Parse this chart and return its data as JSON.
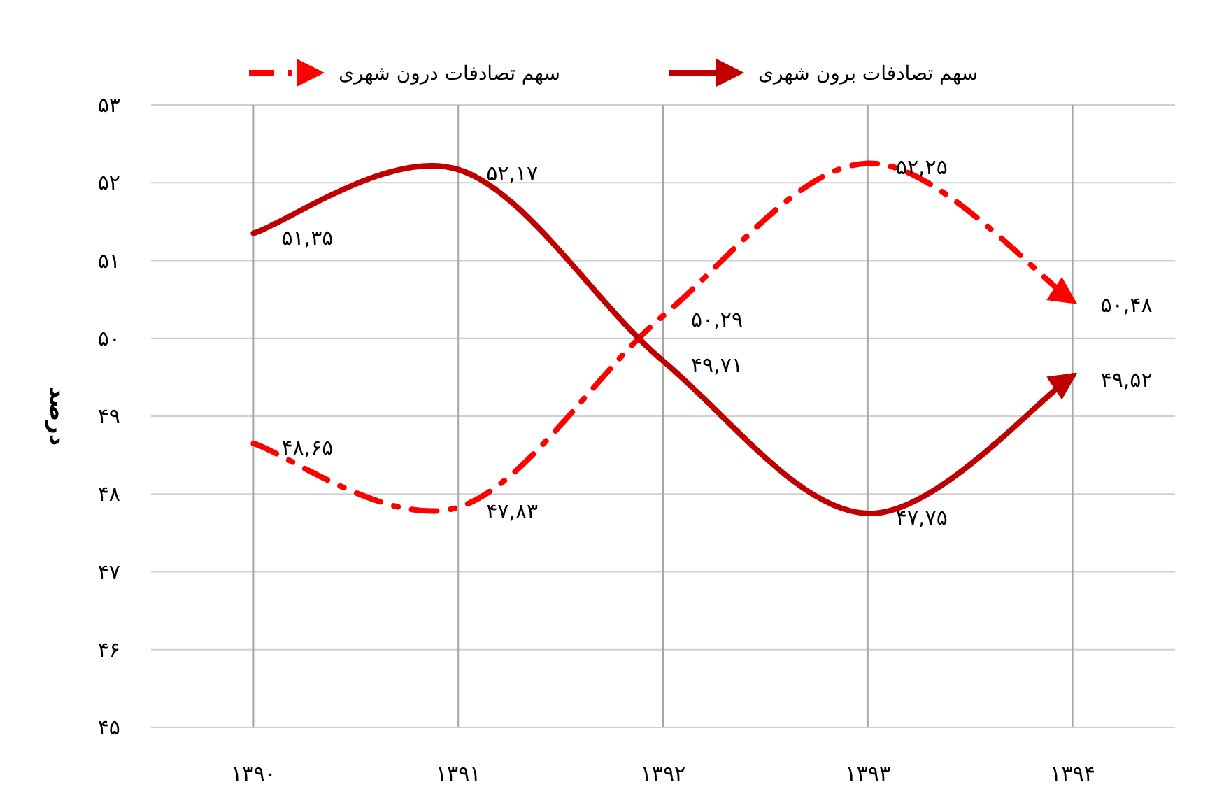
{
  "chart_data": {
    "type": "line",
    "ylabel": "درصد",
    "categories": [
      "۱۳۹۰",
      "۱۳۹۱",
      "۱۳۹۲",
      "۱۳۹۳",
      "۱۳۹۴"
    ],
    "series": [
      {
        "name": "سهم تصادفات درون شهری",
        "color": "#ff0000",
        "line_style": "dashed",
        "values": [
          48.65,
          47.83,
          50.29,
          52.25,
          50.48
        ],
        "value_labels": [
          "۴۸,۶۵",
          "۴۷,۸۳",
          "۵۰,۲۹",
          "۵۲,۲۵",
          "۵۰,۴۸"
        ]
      },
      {
        "name": "سهم تصادفات برون شهری",
        "color": "#c00000",
        "line_style": "solid",
        "values": [
          51.35,
          52.17,
          49.71,
          47.75,
          49.52
        ],
        "value_labels": [
          "۵۱,۳۵",
          "۵۲,۱۷",
          "۴۹,۷۱",
          "۴۷,۷۵",
          "۴۹,۵۲"
        ]
      }
    ],
    "ylim": [
      45,
      53
    ],
    "yticks": [
      {
        "value": 45,
        "label": "۴۵"
      },
      {
        "value": 46,
        "label": "۴۶"
      },
      {
        "value": 47,
        "label": "۴۷"
      },
      {
        "value": 48,
        "label": "۴۸"
      },
      {
        "value": 49,
        "label": "۴۹"
      },
      {
        "value": 50,
        "label": "۵۰"
      },
      {
        "value": 51,
        "label": "۵۱"
      },
      {
        "value": 52,
        "label": "۵۲"
      },
      {
        "value": 53,
        "label": "۵۳"
      }
    ],
    "grid": true,
    "legend": "top"
  }
}
